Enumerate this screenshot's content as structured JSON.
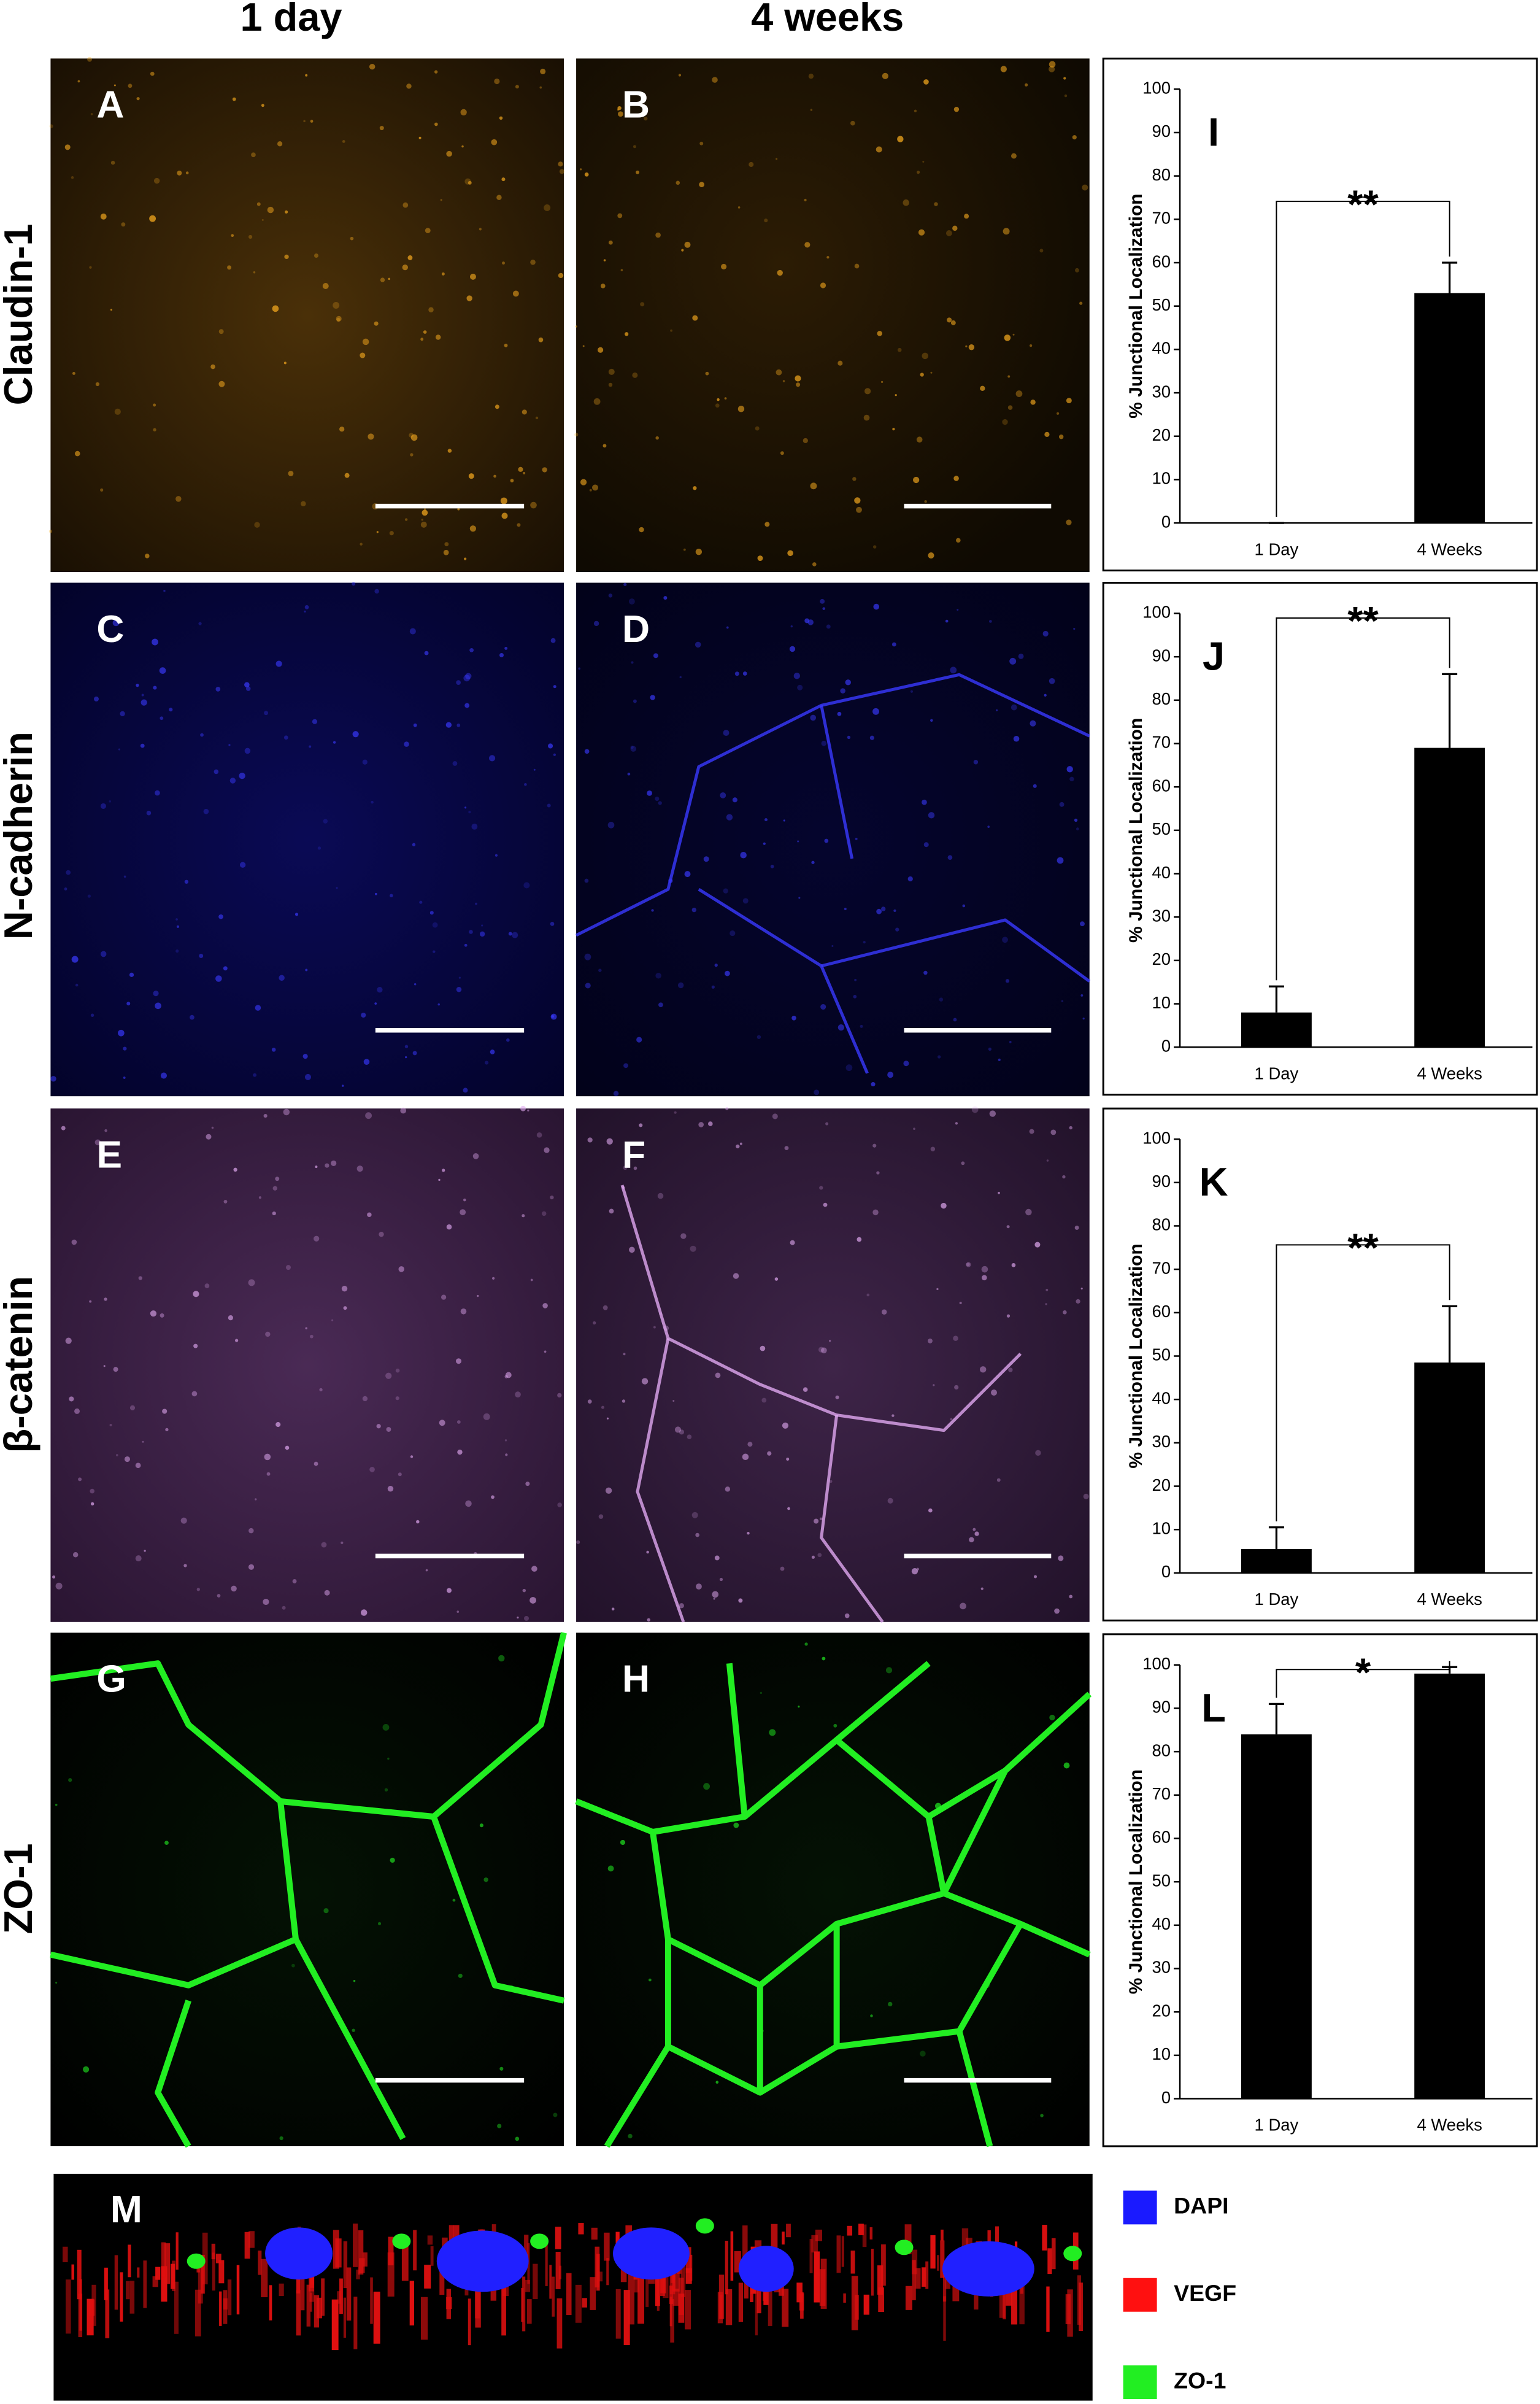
{
  "figure": {
    "columns": [
      "1 day",
      "4 weeks"
    ],
    "rows": [
      "Claudin-1",
      "N-cadherin",
      "β-catenin",
      "ZO-1"
    ],
    "panels": [
      "A",
      "B",
      "C",
      "D",
      "E",
      "F",
      "G",
      "H",
      "M"
    ],
    "legend": [
      {
        "name": "DAPI",
        "color": "#1a1aff"
      },
      {
        "name": "VEGF",
        "color": "#ff1010"
      },
      {
        "name": "ZO-1",
        "color": "#22ee22"
      }
    ]
  },
  "chart_data": [
    {
      "type": "bar",
      "panel_label": "I",
      "ylabel": "% Junctional Localization",
      "categories": [
        "1 Day",
        "4 Weeks"
      ],
      "values": [
        0,
        53
      ],
      "errors": [
        0,
        7
      ],
      "annotation": "**",
      "color": "#000000",
      "ylim": [
        0,
        100
      ],
      "yticks": [
        0,
        10,
        20,
        30,
        40,
        50,
        60,
        70,
        80,
        90,
        100
      ]
    },
    {
      "type": "bar",
      "panel_label": "J",
      "ylabel": "% Junctional Localization",
      "categories": [
        "1 Day",
        "4 Weeks"
      ],
      "values": [
        8,
        69
      ],
      "errors": [
        6,
        17
      ],
      "annotation": "**",
      "color": "#000000",
      "ylim": [
        0,
        100
      ],
      "yticks": [
        0,
        10,
        20,
        30,
        40,
        50,
        60,
        70,
        80,
        90,
        100
      ]
    },
    {
      "type": "bar",
      "panel_label": "K",
      "ylabel": "% Junctional Localization",
      "categories": [
        "1 Day",
        "4 Weeks"
      ],
      "values": [
        5.5,
        48.5
      ],
      "errors": [
        5,
        13
      ],
      "annotation": "**",
      "color": "#000000",
      "ylim": [
        0,
        100
      ],
      "yticks": [
        0,
        10,
        20,
        30,
        40,
        50,
        60,
        70,
        80,
        90,
        100
      ]
    },
    {
      "type": "bar",
      "panel_label": "L",
      "ylabel": "% Junctional Localization",
      "categories": [
        "1 Day",
        "4 Weeks"
      ],
      "values": [
        84,
        98
      ],
      "errors": [
        7,
        1.5
      ],
      "annotation": "*",
      "color": "#000000",
      "ylim": [
        0,
        100
      ],
      "yticks": [
        0,
        10,
        20,
        30,
        40,
        50,
        60,
        70,
        80,
        90,
        100
      ]
    }
  ]
}
